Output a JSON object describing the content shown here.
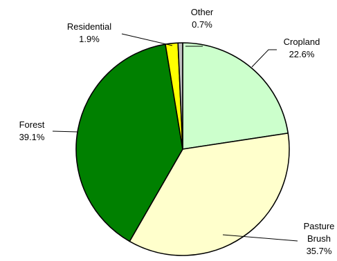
{
  "chart_data": {
    "type": "pie",
    "title": "",
    "slices": [
      {
        "name": "Cropland",
        "label_lines": [
          "Cropland"
        ],
        "value_label": "22.6%",
        "value": 22.6,
        "color": "#ccffcc"
      },
      {
        "name": "Pasture Brush",
        "label_lines": [
          "Pasture",
          "Brush"
        ],
        "value_label": "35.7%",
        "value": 35.7,
        "color": "#ffffcc"
      },
      {
        "name": "Forest",
        "label_lines": [
          "Forest"
        ],
        "value_label": "39.1%",
        "value": 39.1,
        "color": "#008000"
      },
      {
        "name": "Residential",
        "label_lines": [
          "Residential"
        ],
        "value_label": "1.9%",
        "value": 1.9,
        "color": "#ffff00"
      },
      {
        "name": "Other",
        "label_lines": [
          "Other"
        ],
        "value_label": "0.7%",
        "value": 0.7,
        "color": "#c0c0c0"
      }
    ]
  }
}
